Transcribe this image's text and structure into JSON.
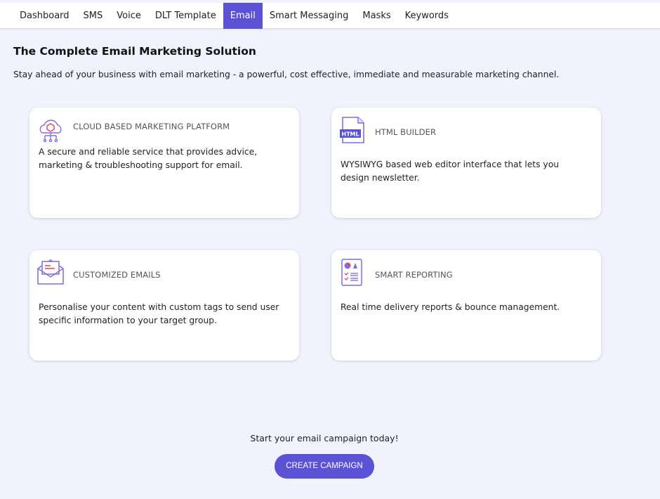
{
  "nav": {
    "tabs": [
      "Dashboard",
      "SMS",
      "Voice",
      "DLT Template",
      "Email",
      "Smart Messaging",
      "Masks",
      "Keywords"
    ],
    "active": "Email"
  },
  "page": {
    "title": "The Complete Email Marketing Solution",
    "subtitle": "Stay ahead of your business with email marketing - a powerful, cost effective, immediate and measurable marketing channel."
  },
  "cards": [
    {
      "icon": "cloud-network-icon",
      "title": "CLOUD BASED MARKETING PLATFORM",
      "desc": "A secure and reliable service that provides advice, marketing & troubleshooting support for email."
    },
    {
      "icon": "html-file-icon",
      "title": "HTML BUILDER",
      "desc": "WYSIWYG based web editor interface that lets you design newsletter.",
      "icon_text": "HTML"
    },
    {
      "icon": "open-envelope-icon",
      "title": "CUSTOMIZED EMAILS",
      "desc": "Personalise your content with custom tags to send user specific information to your target group."
    },
    {
      "icon": "report-icon",
      "title": "SMART REPORTING",
      "desc": "Real time delivery reports & bounce management."
    }
  ],
  "cta": {
    "text": "Start your email campaign today!",
    "button": "CREATE CAMPAIGN"
  },
  "colors": {
    "accent": "#5b52d6",
    "background": "#f0f3fb",
    "icon_highlight": "#e8405a"
  }
}
